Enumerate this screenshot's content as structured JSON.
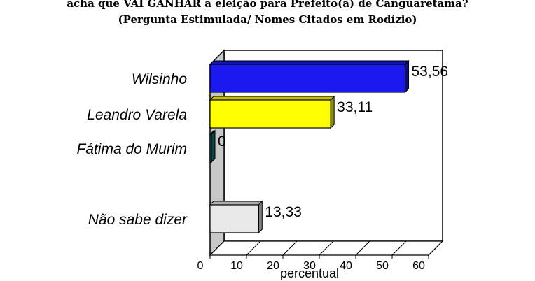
{
  "title": {
    "part1": "acha que ",
    "underlined": "VAI GANHAR a ",
    "part2": "eleição para Prefeito(a) de Canguaretama?",
    "line2": "(Pergunta Estimulada/ Nomes Citados em Rodízio)"
  },
  "chart_data": {
    "type": "bar",
    "orientation": "horizontal",
    "categories": [
      "Wilsinho",
      "Leandro Varela",
      "Fátima do Murim",
      "Não sabe dizer"
    ],
    "values": [
      53.56,
      33.11,
      0,
      13.33
    ],
    "value_labels": [
      "53,56",
      "33,11",
      "0",
      "13,33"
    ],
    "colors": [
      "#1a1aee",
      "#ffff00",
      "#1a8080",
      "#e8e8e8"
    ],
    "xlabel": "percentual",
    "xlim": [
      0,
      60
    ],
    "xticks": [
      "0",
      "10",
      "20",
      "30",
      "40",
      "50",
      "60"
    ],
    "grid": false,
    "legend": "none"
  }
}
